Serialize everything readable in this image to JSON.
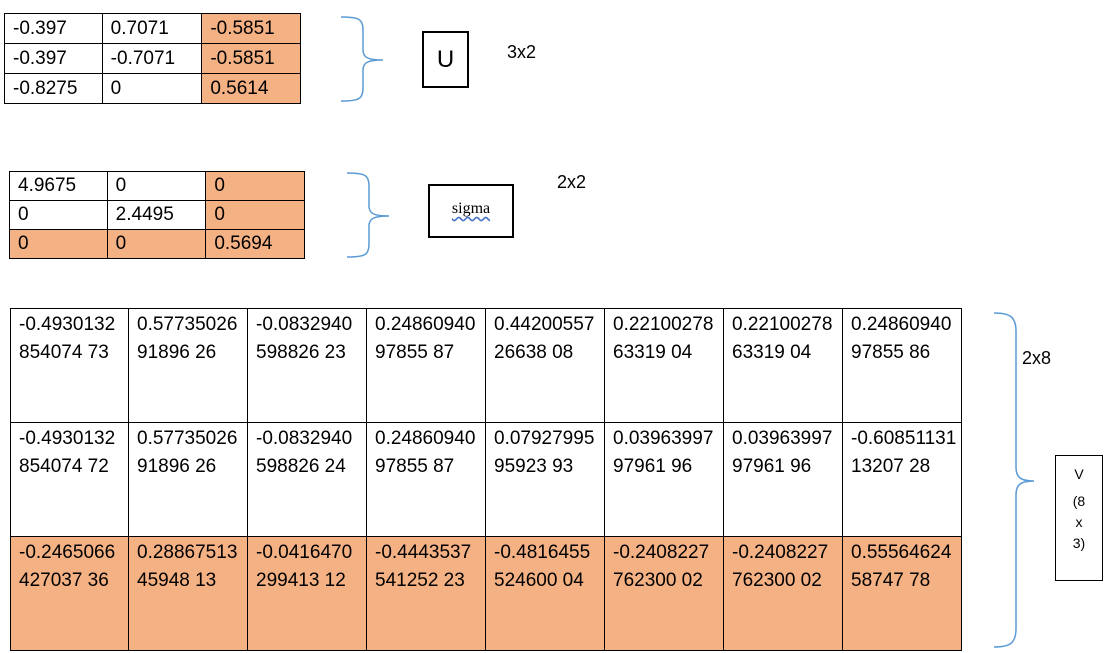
{
  "matrix_u": {
    "rows": [
      [
        "-0.397",
        "0.7071",
        "-0.5851"
      ],
      [
        "-0.397",
        "-0.7071",
        "-0.5851"
      ],
      [
        "-0.8275",
        "0",
        "0.5614"
      ]
    ],
    "label": "U",
    "dimension": "3x2"
  },
  "matrix_sigma": {
    "rows": [
      [
        "4.9675",
        "0",
        "0"
      ],
      [
        "0",
        "2.4495",
        "0"
      ],
      [
        "0",
        "0",
        "0.5694"
      ]
    ],
    "label": "sigma",
    "dimension": "2x2"
  },
  "matrix_v": {
    "rows": [
      [
        "-0.4930132854074 73",
        "0.5773502691896 26",
        "-0.0832940598826 23",
        "0.2486094097855 87",
        "0.4420055726638 08",
        "0.2210027863319 04",
        "0.2210027863319 04",
        "0.2486094097855 86"
      ],
      [
        "-0.4930132854074 72",
        "0.5773502691896 26",
        "-0.0832940598826 24",
        "0.2486094097855 87",
        "0.0792799595923 93",
        "0.0396399797961 96",
        "0.0396399797961 96",
        "-0.6085113113207 28"
      ],
      [
        "-0.2465066427037 36",
        "0.2886751345948 13",
        "-0.0416470299413 12",
        "-0.4443537541252 23",
        "-0.4816455524600 04",
        "-0.2408227762300 02",
        "-0.2408227762300 02",
        "0.5556462458747 78"
      ]
    ],
    "label_lines": [
      "V",
      "(8",
      "x",
      "3)"
    ],
    "dimension": "2x8"
  },
  "colors": {
    "highlight": "#f4b183",
    "brace": "#5b9bd5"
  }
}
